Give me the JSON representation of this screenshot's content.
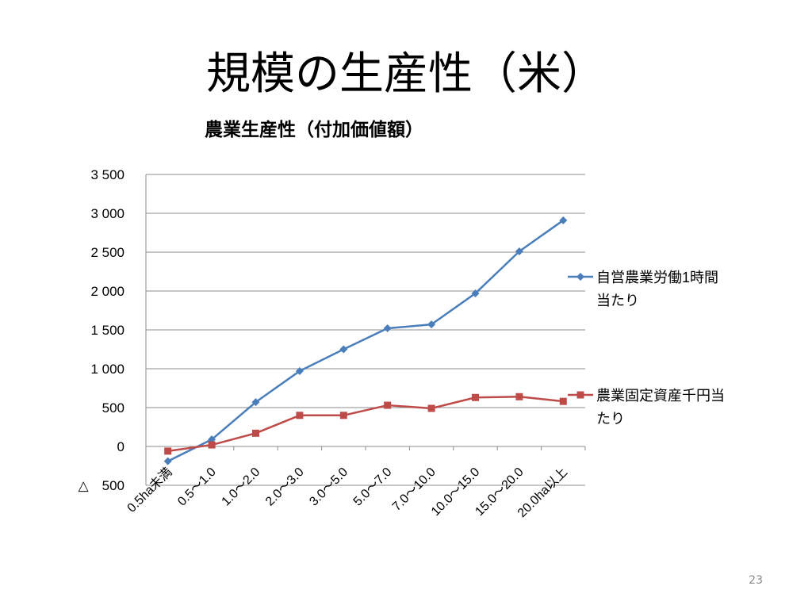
{
  "slide": {
    "title": "規模の生産性（米）",
    "page_number": "23"
  },
  "chart_data": {
    "type": "line",
    "title": "農業生産性（付加価値額）",
    "categories": [
      "0.5ha未満",
      "0.5～1.0",
      "1.0～2.0",
      "2.0～3.0",
      "3.0～5.0",
      "5.0～7.0",
      "7.0～10.0",
      "10.0～15.0",
      "15.0～20.0",
      "20.0ha以上"
    ],
    "series": [
      {
        "name": "自営農業労働1時間当たり",
        "legend_lines": [
          "自営農業労働1時間",
          "当たり"
        ],
        "color": "#4a7ebb",
        "marker": "diamond",
        "values": [
          -190,
          90,
          570,
          970,
          1250,
          1520,
          1570,
          1970,
          2510,
          2910
        ]
      },
      {
        "name": "農業固定資産千円当たり",
        "legend_lines": [
          "農業固定資産千円当",
          "たり"
        ],
        "color": "#be4b48",
        "marker": "square",
        "values": [
          -60,
          20,
          170,
          400,
          400,
          530,
          490,
          630,
          640,
          580
        ]
      }
    ],
    "ylim": [
      -500,
      3500
    ],
    "ytick_step": 500,
    "yticks": [
      {
        "value": 3500,
        "label": "3 500"
      },
      {
        "value": 3000,
        "label": "3 000"
      },
      {
        "value": 2500,
        "label": "2 500"
      },
      {
        "value": 2000,
        "label": "2 000"
      },
      {
        "value": 1500,
        "label": "1 500"
      },
      {
        "value": 1000,
        "label": "1 000"
      },
      {
        "value": 500,
        "label": "500"
      },
      {
        "value": 0,
        "label": "0"
      },
      {
        "value": -500,
        "label": "△　500"
      }
    ],
    "grid": true,
    "legend": "right",
    "xlabel": "",
    "ylabel": ""
  }
}
